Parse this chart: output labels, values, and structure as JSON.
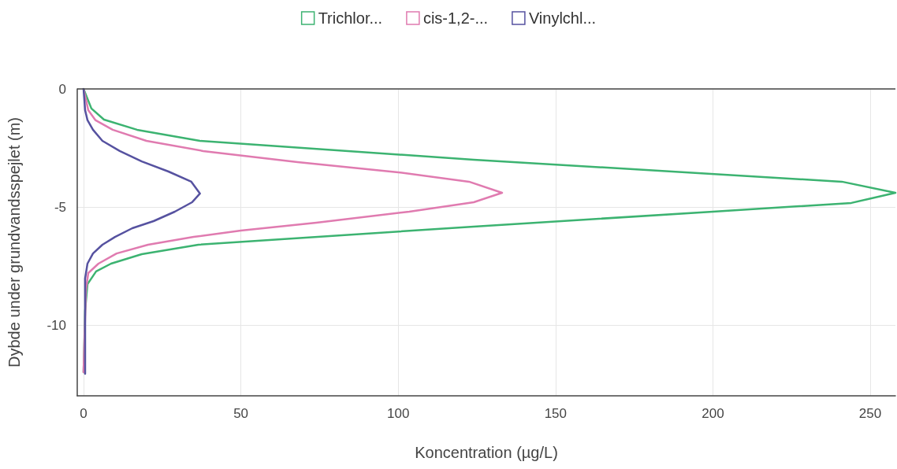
{
  "chart_data": {
    "type": "line",
    "xlabel": "Koncentration (µg/L)",
    "ylabel": "Dybde under grundvandsspejlet (m)",
    "xlim": [
      -2,
      258
    ],
    "xticks": [
      0,
      50,
      100,
      150,
      200,
      250
    ],
    "ylim": [
      -13,
      0
    ],
    "yticks": [
      0,
      -5,
      -10
    ],
    "grid": true,
    "legend": "top",
    "marker": "none",
    "line_style": "solid",
    "ref_lines": [
      {
        "axis": "y",
        "value": 0,
        "color": "#444444"
      }
    ],
    "series": [
      {
        "name": "Trichlor...",
        "color": "#3cb371",
        "x": [
          0,
          2.5,
          6.5,
          17,
          37,
          124,
          241,
          258,
          244,
          200,
          124,
          36.5,
          18.5,
          8.75,
          4,
          1.25,
          0.5,
          0
        ],
        "values": [
          0,
          -0.83,
          -1.3,
          -1.73,
          -2.2,
          -3.0,
          -3.93,
          -4.4,
          -4.83,
          -5.2,
          -5.83,
          -6.6,
          -7.0,
          -7.4,
          -7.73,
          -8.27,
          -9.4,
          -12
        ]
      },
      {
        "name": "cis-1,2-...",
        "color": "#e07bb0",
        "x": [
          0,
          1.5,
          3.75,
          9.25,
          20,
          38,
          68,
          100,
          122.5,
          133,
          124,
          103.5,
          74,
          50,
          35,
          20.5,
          10.5,
          4.75,
          1.5,
          0.75,
          0
        ],
        "values": [
          0,
          -0.9,
          -1.32,
          -1.73,
          -2.2,
          -2.63,
          -3.1,
          -3.53,
          -3.93,
          -4.4,
          -4.8,
          -5.2,
          -5.67,
          -6.0,
          -6.27,
          -6.6,
          -6.97,
          -7.4,
          -7.8,
          -8.53,
          -12
        ]
      },
      {
        "name": "Vinylchl...",
        "color": "#5652a0",
        "x": [
          0,
          0.5,
          1.25,
          3,
          6,
          11.5,
          18.5,
          27,
          34.25,
          37,
          34.5,
          29,
          22.25,
          15.5,
          10,
          6,
          3,
          1.25,
          0.5,
          0.5
        ],
        "values": [
          0,
          -0.9,
          -1.32,
          -1.73,
          -2.2,
          -2.63,
          -3.07,
          -3.5,
          -3.93,
          -4.43,
          -4.8,
          -5.2,
          -5.6,
          -5.9,
          -6.27,
          -6.6,
          -6.97,
          -7.4,
          -8.03,
          -12.07
        ]
      }
    ]
  }
}
